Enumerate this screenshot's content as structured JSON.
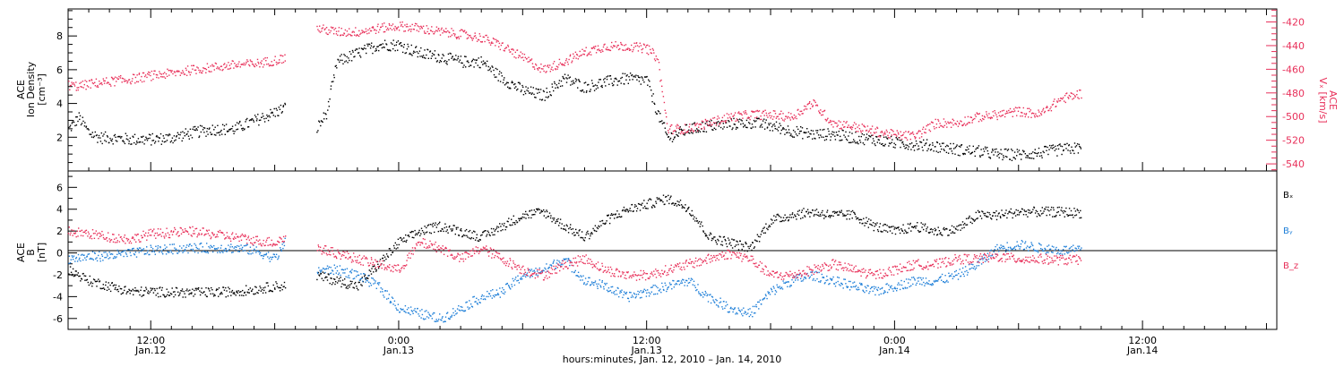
{
  "colors": {
    "black": "#000000",
    "red": "#e8305a",
    "blue": "#1f7fd8"
  },
  "chart_data": [
    {
      "type": "scatter",
      "panel": "top",
      "ylabel": [
        "ACE",
        "Ion Density",
        "[cm⁻³]"
      ],
      "y2label": [
        "ACE",
        "Vₓ [km/s]"
      ],
      "xlim_hours": [
        8,
        66.5
      ],
      "ylim": [
        0,
        9.6
      ],
      "y_ticks": [
        2,
        4,
        6,
        8
      ],
      "y2lim": [
        -546,
        -409
      ],
      "y2_ticks": [
        -540,
        -520,
        -500,
        -480,
        -460,
        -440,
        -420
      ],
      "series": [
        {
          "name": "Ion Density",
          "axis": "left",
          "color": "#000000",
          "x": [
            8.0,
            8.5,
            9.0,
            9.5,
            10.0,
            11.0,
            12.0,
            13.0,
            14.0,
            15.0,
            16.0,
            17.0,
            18.0,
            18.5,
            19.0,
            19.5,
            20.0,
            20.5,
            21.0,
            22.0,
            23.0,
            24.0,
            25.0,
            26.0,
            27.0,
            28.0,
            29.0,
            30.0,
            31.0,
            32.0,
            33.0,
            34.0,
            35.0,
            36.0,
            36.5,
            37.0,
            38.0,
            39.0,
            40.0,
            41.0,
            42.0,
            43.0,
            44.0,
            45.0,
            46.0,
            47.0,
            48.0,
            49.0,
            50.0,
            51.0,
            52.0,
            53.0,
            54.0,
            55.0,
            56.0,
            57.0
          ],
          "y": [
            2.5,
            3.2,
            2.3,
            2.0,
            2.0,
            1.9,
            1.9,
            2.0,
            2.3,
            2.5,
            2.5,
            3.0,
            3.5,
            3.8,
            null,
            null,
            2.5,
            3.5,
            6.5,
            7.0,
            7.5,
            7.5,
            7.0,
            6.8,
            6.5,
            6.5,
            5.5,
            4.8,
            4.5,
            5.5,
            5.0,
            5.3,
            5.5,
            5.4,
            3.5,
            2.0,
            2.5,
            2.7,
            2.8,
            2.9,
            2.7,
            2.4,
            2.2,
            2.2,
            2.0,
            1.9,
            1.7,
            1.6,
            1.5,
            1.3,
            1.2,
            1.0,
            1.0,
            1.1,
            1.3,
            1.4
          ]
        },
        {
          "name": "Vx",
          "axis": "right",
          "color": "#e8305a",
          "x": [
            8.0,
            8.5,
            9.0,
            10.0,
            11.0,
            12.0,
            13.0,
            14.0,
            15.0,
            16.0,
            17.0,
            18.0,
            18.5,
            19.0,
            19.5,
            20.0,
            21.0,
            22.0,
            23.0,
            24.0,
            25.0,
            26.0,
            27.0,
            28.0,
            29.0,
            30.0,
            31.0,
            32.0,
            33.0,
            34.0,
            35.0,
            36.0,
            36.5,
            37.0,
            38.0,
            39.0,
            40.0,
            41.0,
            42.0,
            43.0,
            44.0,
            45.0,
            46.0,
            47.0,
            48.0,
            49.0,
            50.0,
            51.0,
            52.0,
            53.0,
            54.0,
            55.0,
            56.0,
            57.0
          ],
          "y": [
            -473,
            -474,
            -472,
            -470,
            -468,
            -465,
            -463,
            -460,
            -458,
            -456,
            -455,
            -452,
            -450,
            null,
            null,
            -425,
            -428,
            -428,
            -425,
            -423,
            -425,
            -428,
            -430,
            -433,
            -440,
            -450,
            -460,
            -453,
            -445,
            -440,
            -440,
            -442,
            -450,
            -510,
            -510,
            -505,
            -500,
            -498,
            -498,
            -500,
            -488,
            -505,
            -508,
            -512,
            -515,
            -516,
            -505,
            -505,
            -500,
            -498,
            -495,
            -498,
            -485,
            -480
          ]
        }
      ]
    },
    {
      "type": "scatter",
      "panel": "bottom",
      "ylabel": [
        "ACE",
        "B",
        "[nT]"
      ],
      "xlim_hours": [
        8,
        66.5
      ],
      "ylim": [
        -7,
        7.5
      ],
      "y_ticks": [
        -6,
        -4,
        -2,
        0,
        2,
        4,
        6
      ],
      "legend_position": "right",
      "series": [
        {
          "name": "Bₓ",
          "color": "#000000",
          "x": [
            8.0,
            9.0,
            10.0,
            11.0,
            12.0,
            14.0,
            16.0,
            17.0,
            18.0,
            18.5,
            19.0,
            19.5,
            20.0,
            21.0,
            22.0,
            23.0,
            24.0,
            25.0,
            26.0,
            27.0,
            28.0,
            29.0,
            30.0,
            31.0,
            32.0,
            33.0,
            34.0,
            35.0,
            36.0,
            37.0,
            38.0,
            39.0,
            40.0,
            41.0,
            42.0,
            43.0,
            44.0,
            45.0,
            46.0,
            47.0,
            48.0,
            49.0,
            50.0,
            51.0,
            52.0,
            53.0,
            54.0,
            55.0,
            56.0,
            57.0
          ],
          "y": [
            -1.5,
            -2.5,
            -3.0,
            -3.5,
            -3.5,
            -3.6,
            -3.5,
            -3.3,
            -3.0,
            -3.0,
            null,
            null,
            -2.0,
            -2.5,
            -3.0,
            -1.0,
            1.0,
            2.0,
            2.5,
            2.0,
            1.5,
            2.5,
            3.5,
            3.8,
            2.5,
            1.5,
            3.0,
            4.0,
            4.5,
            5.0,
            4.2,
            1.5,
            1.0,
            0.5,
            3.0,
            3.5,
            3.8,
            3.5,
            3.5,
            2.5,
            2.0,
            2.5,
            2.0,
            2.2,
            3.5,
            3.5,
            3.8,
            3.8,
            3.8,
            3.7
          ]
        },
        {
          "name": "Bᵧ",
          "color": "#1f7fd8",
          "x": [
            8.0,
            9.0,
            10.0,
            11.0,
            12.0,
            14.0,
            16.0,
            17.0,
            18.0,
            18.5,
            19.0,
            19.5,
            20.0,
            21.0,
            22.0,
            23.0,
            24.0,
            25.0,
            26.0,
            27.0,
            28.0,
            29.0,
            30.0,
            31.0,
            32.0,
            33.0,
            34.0,
            35.0,
            36.0,
            37.0,
            38.0,
            39.0,
            40.0,
            41.0,
            42.0,
            43.0,
            44.0,
            45.0,
            46.0,
            47.0,
            48.0,
            49.0,
            50.0,
            51.0,
            52.0,
            53.0,
            54.0,
            55.0,
            56.0,
            57.0
          ],
          "y": [
            -0.5,
            -0.3,
            -0.2,
            0.0,
            0.3,
            0.5,
            0.5,
            0.3,
            -0.5,
            1.0,
            null,
            null,
            -1.5,
            -1.5,
            -2.0,
            -3.0,
            -5.0,
            -5.5,
            -6.0,
            -5.0,
            -4.0,
            -3.5,
            -2.0,
            -1.5,
            -0.5,
            -2.5,
            -3.0,
            -4.0,
            -3.5,
            -3.0,
            -2.5,
            -4.0,
            -5.0,
            -5.5,
            -3.5,
            -2.5,
            -2.0,
            -2.5,
            -3.0,
            -3.5,
            -3.0,
            -2.5,
            -2.5,
            -2.0,
            -1.0,
            0.5,
            0.8,
            0.5,
            0.3,
            0.3
          ]
        },
        {
          "name": "B_z",
          "color": "#e8305a",
          "x": [
            8.0,
            9.0,
            10.0,
            11.0,
            12.0,
            14.0,
            16.0,
            17.0,
            18.0,
            18.5,
            19.0,
            19.5,
            20.0,
            21.0,
            22.0,
            23.0,
            24.0,
            25.0,
            26.0,
            27.0,
            28.0,
            29.0,
            30.0,
            31.0,
            32.0,
            33.0,
            34.0,
            35.0,
            36.0,
            37.0,
            38.0,
            39.0,
            40.0,
            41.0,
            42.0,
            43.0,
            44.0,
            45.0,
            46.0,
            47.0,
            48.0,
            49.0,
            50.0,
            51.0,
            52.0,
            53.0,
            54.0,
            55.0,
            56.0,
            57.0
          ],
          "y": [
            2.0,
            1.8,
            1.5,
            1.3,
            1.8,
            2.0,
            1.5,
            1.2,
            1.0,
            1.5,
            null,
            null,
            0.5,
            0.0,
            -0.5,
            -1.0,
            -1.5,
            1.0,
            0.5,
            -0.5,
            0.5,
            -0.5,
            -1.5,
            -2.0,
            -1.0,
            -0.5,
            -1.5,
            -2.0,
            -2.0,
            -1.5,
            -1.0,
            -0.5,
            0.0,
            -0.5,
            -2.0,
            -2.0,
            -1.5,
            -1.0,
            -1.5,
            -2.0,
            -1.5,
            -1.0,
            -1.0,
            -0.5,
            -0.5,
            -0.3,
            -0.5,
            -0.5,
            -0.6,
            -0.6
          ]
        }
      ]
    }
  ],
  "x_axis": {
    "ticks": [
      {
        "hours": 12,
        "time": "12:00",
        "date": "Jan.12"
      },
      {
        "hours": 24,
        "time": "0:00",
        "date": "Jan.13"
      },
      {
        "hours": 36,
        "time": "12:00",
        "date": "Jan.13"
      },
      {
        "hours": 48,
        "time": "0:00",
        "date": "Jan.14"
      },
      {
        "hours": 60,
        "time": "12:00",
        "date": "Jan.14"
      }
    ],
    "label": "hours:minutes, Jan. 12, 2010 – Jan. 14, 2010"
  }
}
